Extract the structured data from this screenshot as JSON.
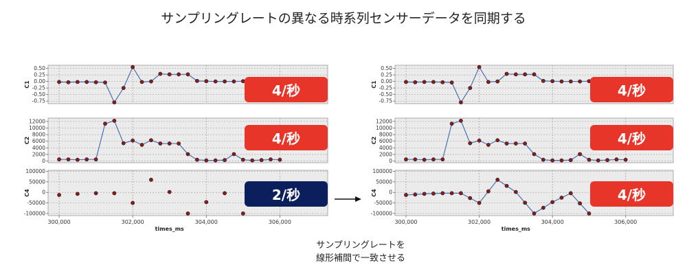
{
  "title": "サンプリングレートの異なる時系列センサーデータを同期する",
  "caption_line1": "サンプリングレートを",
  "caption_line2": "線形補間で一致させる",
  "colors": {
    "rate_red": "#e8352a",
    "rate_navy": "#0b1f5c",
    "line": "#4a6fb5",
    "marker": "#8b1a1a",
    "plot_bg": "#ebebeb"
  },
  "chart_data": [
    {
      "type": "line",
      "panel": "left",
      "xlabel": "times_ms",
      "xticks": [
        300000,
        302000,
        304000,
        306000
      ],
      "xtick_labels": [
        "300,000",
        "302,000",
        "304,000",
        "306,000"
      ],
      "xlim": [
        299700,
        307300
      ],
      "grid": true,
      "series": [
        {
          "axis_label": "C1",
          "rate_label": "4/秒",
          "rate_color": "red",
          "lines": true,
          "ylim": [
            -0.85,
            0.62
          ],
          "yticks": [
            0.5,
            0.25,
            0,
            -0.25,
            -0.5,
            -0.75
          ],
          "ytick_labels": [
            "0.50",
            "0.25",
            "0.00",
            "-0.25",
            "-0.50",
            "-0.75"
          ],
          "x": [
            300000,
            300250,
            300500,
            300750,
            301000,
            301250,
            301500,
            301750,
            302000,
            302250,
            302500,
            302750,
            303000,
            303250,
            303500,
            303750,
            304000,
            304250,
            304500,
            304750,
            305000
          ],
          "y": [
            -0.02,
            -0.03,
            -0.02,
            -0.02,
            -0.03,
            -0.04,
            -0.8,
            -0.25,
            0.55,
            -0.02,
            0.0,
            0.29,
            0.27,
            0.27,
            0.27,
            0.02,
            0.01,
            0.0,
            0.0,
            0.0,
            0.01
          ]
        },
        {
          "axis_label": "C2",
          "rate_label": "4/秒",
          "rate_color": "red",
          "lines": true,
          "ylim": [
            -500,
            13000
          ],
          "yticks": [
            12000,
            10000,
            8000,
            6000,
            4000,
            2000,
            0
          ],
          "ytick_labels": [
            "12000",
            "10000",
            "8000",
            "6000",
            "4000",
            "2000",
            "0"
          ],
          "x": [
            300000,
            300250,
            300500,
            300750,
            301000,
            301250,
            301500,
            301750,
            302000,
            302250,
            302500,
            302750,
            303000,
            303250,
            303500,
            303750,
            304000,
            304250,
            304500,
            304750,
            305000,
            305250,
            305500,
            305750,
            306000
          ],
          "y": [
            500,
            500,
            400,
            500,
            500,
            11300,
            12200,
            5400,
            6200,
            4900,
            6300,
            5300,
            5300,
            5300,
            2100,
            400,
            200,
            200,
            300,
            2100,
            400,
            200,
            300,
            500,
            400
          ]
        },
        {
          "axis_label": "C4",
          "rate_label": "2/秒",
          "rate_color": "navy",
          "lines": false,
          "ylim": [
            -110000,
            105000
          ],
          "yticks": [
            100000,
            50000,
            0,
            -50000,
            -100000
          ],
          "ytick_labels": [
            "100000",
            "50000",
            "0",
            "-50000",
            "-100000"
          ],
          "x": [
            300000,
            300500,
            301000,
            301500,
            302000,
            302500,
            303000,
            303500,
            304000,
            304500,
            305000
          ],
          "y": [
            -12000,
            -7000,
            -4000,
            -4000,
            -50000,
            60000,
            2000,
            -100000,
            -46000,
            -4000,
            -100000
          ]
        }
      ]
    },
    {
      "type": "line",
      "panel": "right",
      "xlabel": "times_ms",
      "xticks": [
        300000,
        302000,
        304000,
        306000
      ],
      "xtick_labels": [
        "300,000",
        "302,000",
        "304,000",
        "306,000"
      ],
      "xlim": [
        299700,
        307300
      ],
      "grid": true,
      "series": [
        {
          "axis_label": "C1",
          "rate_label": "4/秒",
          "rate_color": "red",
          "lines": true,
          "ylim": [
            -0.85,
            0.62
          ],
          "yticks": [
            0.5,
            0.25,
            0,
            -0.25,
            -0.5,
            -0.75
          ],
          "ytick_labels": [
            "0.50",
            "0.25",
            "0.00",
            "-0.25",
            "-0.50",
            "-0.75"
          ],
          "x": [
            300000,
            300250,
            300500,
            300750,
            301000,
            301250,
            301500,
            301750,
            302000,
            302250,
            302500,
            302750,
            303000,
            303250,
            303500,
            303750,
            304000,
            304250,
            304500,
            304750,
            305000
          ],
          "y": [
            -0.02,
            -0.03,
            -0.02,
            -0.02,
            -0.03,
            -0.04,
            -0.8,
            -0.25,
            0.55,
            -0.02,
            0.0,
            0.29,
            0.27,
            0.27,
            0.27,
            0.02,
            0.01,
            0.0,
            0.0,
            0.0,
            0.01
          ]
        },
        {
          "axis_label": "C2",
          "rate_label": "4/秒",
          "rate_color": "red",
          "lines": true,
          "ylim": [
            -500,
            13000
          ],
          "yticks": [
            12000,
            10000,
            8000,
            6000,
            4000,
            2000,
            0
          ],
          "ytick_labels": [
            "12000",
            "10000",
            "8000",
            "6000",
            "4000",
            "2000",
            "0"
          ],
          "x": [
            300000,
            300250,
            300500,
            300750,
            301000,
            301250,
            301500,
            301750,
            302000,
            302250,
            302500,
            302750,
            303000,
            303250,
            303500,
            303750,
            304000,
            304250,
            304500,
            304750,
            305000,
            305250,
            305500,
            305750,
            306000
          ],
          "y": [
            500,
            500,
            400,
            500,
            500,
            11300,
            12200,
            5400,
            6200,
            4900,
            6300,
            5300,
            5300,
            5300,
            2100,
            400,
            200,
            200,
            300,
            2100,
            400,
            200,
            300,
            500,
            400
          ]
        },
        {
          "axis_label": "C4",
          "rate_label": "4/秒",
          "rate_color": "red",
          "lines": true,
          "ylim": [
            -110000,
            105000
          ],
          "yticks": [
            100000,
            50000,
            0,
            -50000,
            -100000
          ],
          "ytick_labels": [
            "100000",
            "50000",
            "0",
            "-50000",
            "-100000"
          ],
          "x": [
            300000,
            300250,
            300500,
            300750,
            301000,
            301250,
            301500,
            301750,
            302000,
            302250,
            302500,
            302750,
            303000,
            303250,
            303500,
            303750,
            304000,
            304250,
            304500,
            304750,
            305000
          ],
          "y": [
            -12000,
            -10000,
            -7000,
            -5500,
            -4000,
            -4000,
            -4000,
            -27000,
            -50000,
            5000,
            60000,
            31000,
            2000,
            -49000,
            -100000,
            -73000,
            -46000,
            -25000,
            -4000,
            -52000,
            -100000
          ]
        }
      ]
    }
  ]
}
